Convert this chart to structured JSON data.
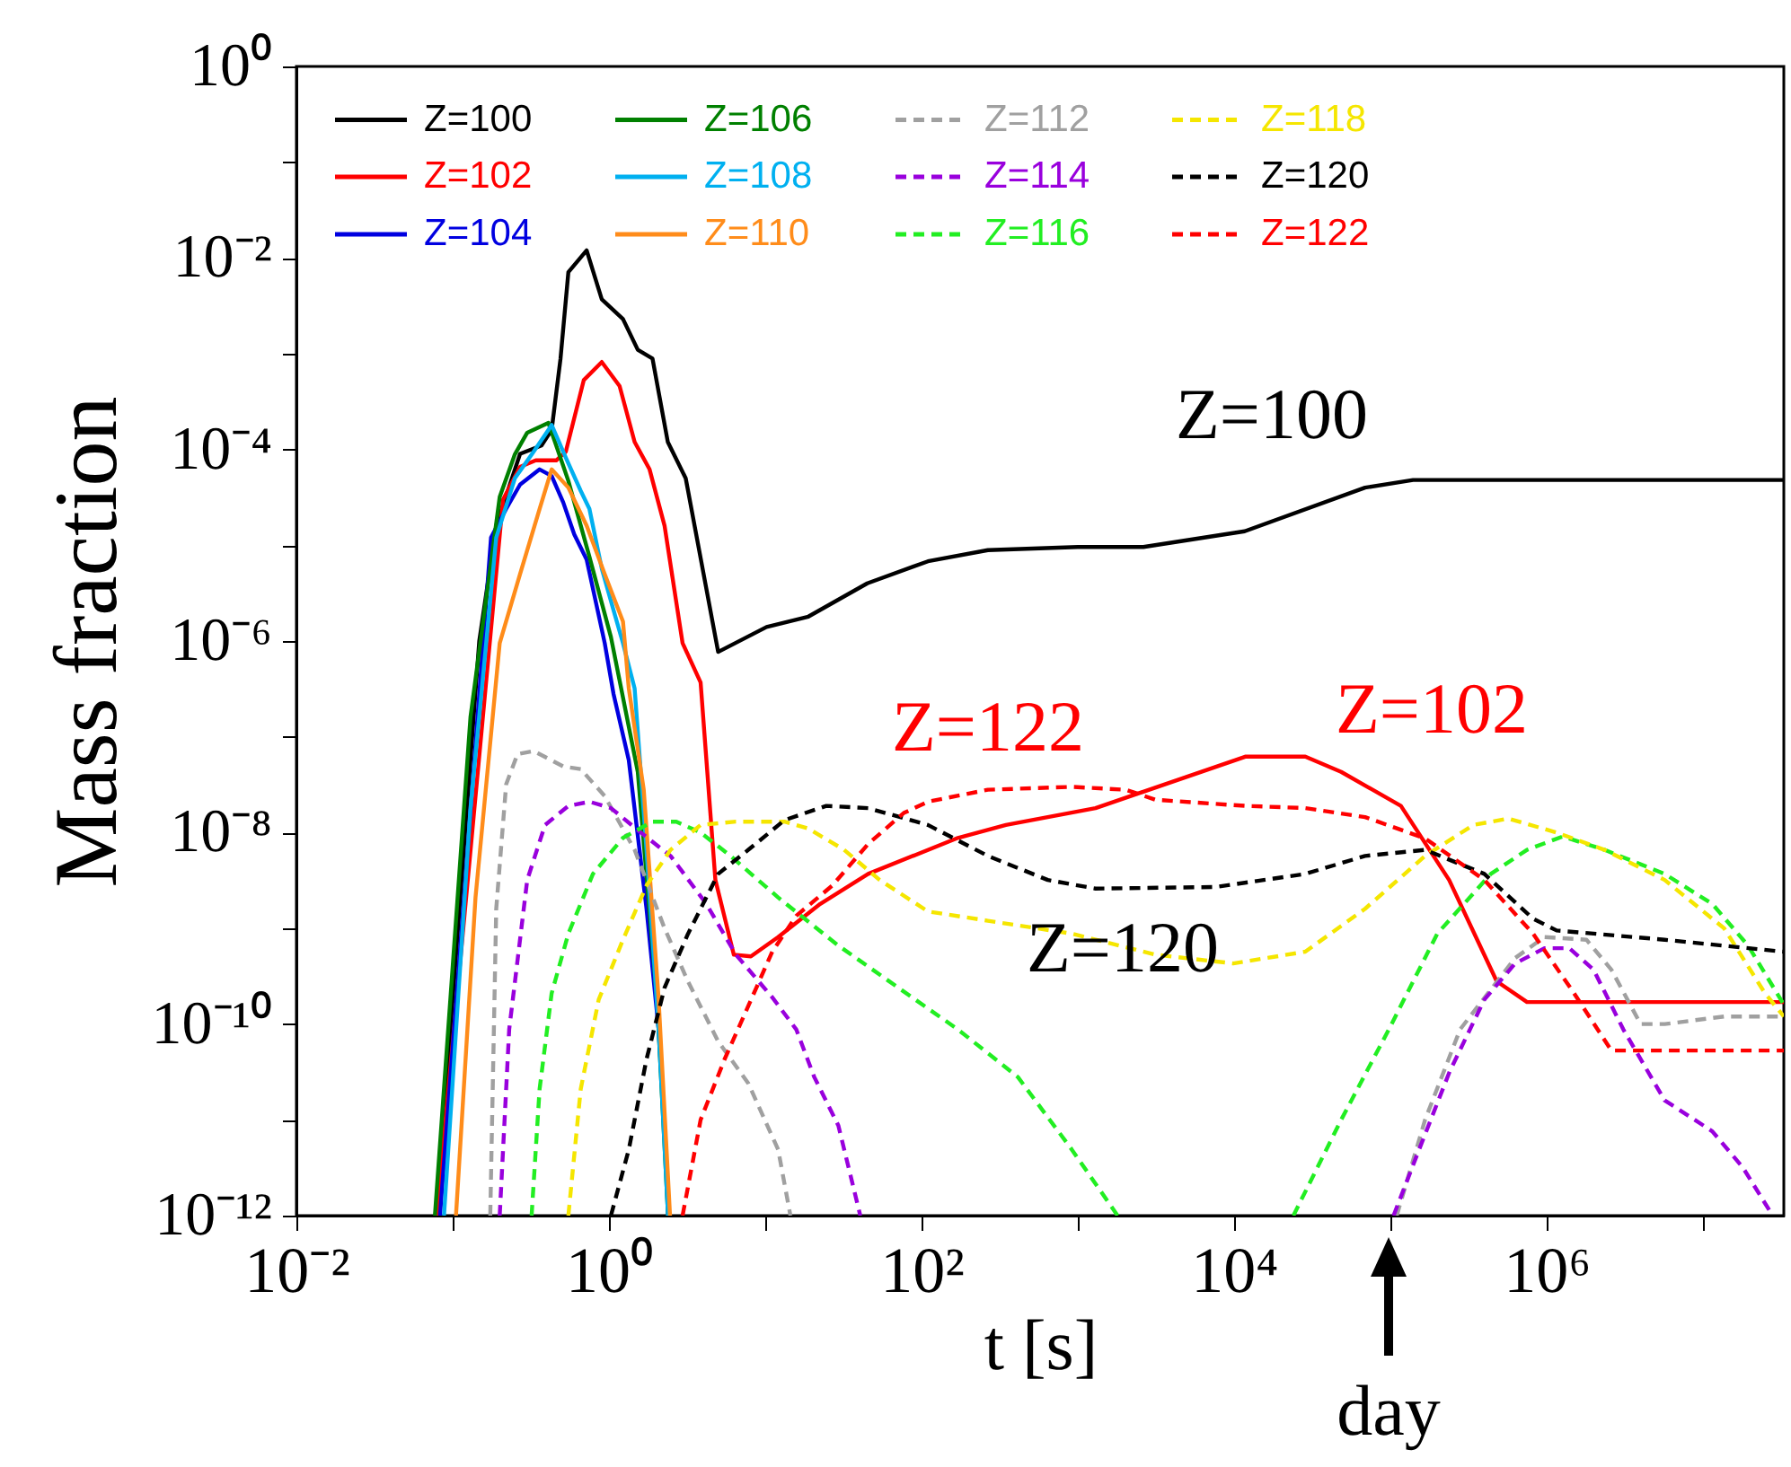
{
  "chart_data": {
    "type": "line",
    "xlabel": "t [s]",
    "ylabel": "Mass fraction",
    "log": "xy",
    "xlim": [
      0.01,
      33000000.0
    ],
    "ylim": [
      1e-12,
      1
    ],
    "xticks": [
      {
        "value": 0.01,
        "label": "10⁻²"
      },
      {
        "value": 0.1,
        "label": null
      },
      {
        "value": 1,
        "label": "10⁰"
      },
      {
        "value": 10,
        "label": null
      },
      {
        "value": 100,
        "label": "10²"
      },
      {
        "value": 1000,
        "label": null
      },
      {
        "value": 10000,
        "label": "10⁴"
      },
      {
        "value": 100000,
        "label": null
      },
      {
        "value": 1000000,
        "label": "10⁶"
      },
      {
        "value": 10000000,
        "label": null
      }
    ],
    "yticks": [
      {
        "value": 1,
        "label": "10⁰"
      },
      {
        "value": 0.1,
        "label": null
      },
      {
        "value": 0.01,
        "label": "10⁻²"
      },
      {
        "value": 0.001,
        "label": null
      },
      {
        "value": 0.0001,
        "label": "10⁻⁴"
      },
      {
        "value": 1e-05,
        "label": null
      },
      {
        "value": 1e-06,
        "label": "10⁻⁶"
      },
      {
        "value": 1e-07,
        "label": null
      },
      {
        "value": 1e-08,
        "label": "10⁻⁸"
      },
      {
        "value": 1e-09,
        "label": null
      },
      {
        "value": 1e-10,
        "label": "10⁻¹⁰"
      },
      {
        "value": 1e-11,
        "label": null
      },
      {
        "value": 1e-12,
        "label": "10⁻¹²"
      }
    ],
    "legend": "top left",
    "series": [
      {
        "name": "Z=100",
        "color": "#000000",
        "line_style": "solid",
        "x": [
          0.079,
          0.148,
          0.19,
          0.27,
          0.37,
          0.43,
          0.49,
          0.55,
          0.72,
          0.9,
          1.23,
          1.53,
          1.9,
          2.38,
          3.1,
          5.0,
          10.2,
          18.9,
          45,
          110,
          266,
          1000,
          2630,
          11700,
          69000,
          140000,
          33000000.0
        ],
        "values": [
          1e-12,
          1e-06,
          1.6e-05,
          9e-05,
          0.00011,
          0.00016,
          0.00089,
          0.0071,
          0.012,
          0.0037,
          0.0023,
          0.0011,
          0.00089,
          0.00012,
          5e-05,
          7.7e-07,
          1.4e-06,
          1.8e-06,
          4e-06,
          6.8e-06,
          8.9e-06,
          9.6e-06,
          9.6e-06,
          1.4e-05,
          4e-05,
          4.8e-05,
          4.8e-05
        ]
      },
      {
        "name": "Z=102",
        "color": "#ff0000",
        "line_style": "solid",
        "x": [
          0.079,
          0.21,
          0.27,
          0.34,
          0.46,
          0.53,
          0.69,
          0.9,
          1.17,
          1.46,
          1.82,
          2.27,
          2.96,
          3.86,
          4.8,
          6.3,
          8.1,
          12.1,
          22.5,
          45.6,
          171,
          347,
          1300,
          11800,
          28600,
          48500,
          117000,
          238000,
          480000,
          750000,
          33000000.0
        ],
        "values": [
          1e-12,
          3e-05,
          6.6e-05,
          7.7e-05,
          7.7e-05,
          9.5e-05,
          0.00053,
          0.00082,
          0.00046,
          0.00012,
          6.2e-05,
          1.6e-05,
          9.5e-07,
          3.7e-07,
          3.2e-09,
          5.3e-10,
          5.1e-10,
          8.1e-10,
          1.8e-09,
          3.7e-09,
          8.8e-09,
          1.2e-08,
          1.8e-08,
          6.2e-08,
          6.2e-08,
          4.3e-08,
          1.9e-08,
          3.2e-09,
          2.8e-10,
          1.7e-10,
          1.7e-10
        ]
      },
      {
        "name": "Z=104",
        "color": "#0000e0",
        "line_style": "solid",
        "x": [
          0.083,
          0.176,
          0.22,
          0.27,
          0.36,
          0.43,
          0.51,
          0.6,
          0.72,
          0.94,
          1.07,
          1.34,
          1.74,
          2.08,
          2.31,
          2.39
        ],
        "values": [
          1e-12,
          1.2e-05,
          2.4e-05,
          4.3e-05,
          6.2e-05,
          5.3e-05,
          2.8e-05,
          1.3e-05,
          7.1e-06,
          9.5e-07,
          2.8e-07,
          5.7e-08,
          1.6e-09,
          8.8e-11,
          4.9e-12,
          1e-12
        ]
      },
      {
        "name": "Z=106",
        "color": "#008000",
        "line_style": "solid",
        "x": [
          0.077,
          0.13,
          0.2,
          0.25,
          0.3,
          0.41,
          0.55,
          0.75,
          1.03,
          1.53,
          2.04,
          2.39
        ],
        "values": [
          1e-12,
          1.6e-07,
          3.2e-05,
          8.9e-05,
          0.00015,
          0.00019,
          4.7e-05,
          7.6e-06,
          1.1e-06,
          4.3e-08,
          1.6e-10,
          1e-12
        ]
      },
      {
        "name": "Z=108",
        "color": "#00b0f0",
        "line_style": "solid",
        "x": [
          0.088,
          0.13,
          0.19,
          0.25,
          0.33,
          0.43,
          0.53,
          0.66,
          0.75,
          0.9,
          1.07,
          1.23,
          1.46,
          1.74,
          2.08,
          2.39
        ],
        "values": [
          1e-12,
          1.8e-08,
          1.2e-05,
          5e-05,
          9.5e-05,
          0.00018,
          8.2e-05,
          3.7e-05,
          2.4e-05,
          5.7e-06,
          2.1e-06,
          9.5e-07,
          3.2e-07,
          6.6e-09,
          8.8e-11,
          1e-12
        ]
      },
      {
        "name": "Z=110",
        "color": "#ff8c1a",
        "line_style": "solid",
        "x": [
          0.105,
          0.14,
          0.2,
          0.27,
          0.36,
          0.43,
          0.55,
          0.72,
          0.94,
          1.23,
          1.34,
          1.67,
          2.08,
          2.46
        ],
        "values": [
          1e-12,
          2.1e-09,
          9.5e-07,
          5e-06,
          2.4e-05,
          6.2e-05,
          4e-05,
          1.6e-05,
          5e-06,
          1.6e-06,
          3.2e-07,
          2.8e-08,
          1.8e-10,
          1e-12
        ]
      },
      {
        "name": "Z=112",
        "color": "#a0a0a0",
        "line_style": "dashed",
        "x": [
          0.174,
          0.19,
          0.22,
          0.26,
          0.33,
          0.51,
          0.66,
          0.94,
          1.46,
          2.27,
          3.2,
          5.0,
          7.8,
          12.1,
          14.5,
          1000,
          110000,
          167000,
          280000,
          630000,
          970000,
          1800000,
          2600000,
          4000000,
          5700000,
          13700000,
          33000000.0
        ],
        "values": [
          1e-12,
          1.6e-09,
          3.2e-08,
          6.6e-08,
          7.1e-08,
          4.9e-08,
          4.6e-08,
          2.4e-08,
          6.6e-09,
          1e-09,
          2.8e-10,
          6.6e-11,
          2.4e-11,
          4.9e-12,
          1e-12,
          null,
          1e-12,
          1e-11,
          8.8e-11,
          4.9e-10,
          8.1e-10,
          7.6e-10,
          3.7e-10,
          1e-10,
          1e-10,
          1.2e-10,
          1.2e-10
        ]
      },
      {
        "name": "Z=114",
        "color": "#9900dd",
        "line_style": "dashed",
        "x": [
          0.2,
          0.23,
          0.3,
          0.39,
          0.55,
          0.75,
          1.03,
          1.6,
          2.48,
          4.2,
          6.5,
          11.1,
          15.8,
          20.6,
          29.4,
          40.6,
          1000,
          105000,
          153000,
          240000,
          400000,
          630000,
          970000,
          1400000,
          2000000,
          3100000,
          5700000,
          11500000,
          18000000,
          28000000
        ],
        "values": [
          1e-12,
          8.8e-11,
          3.2e-09,
          1.2e-08,
          1.9e-08,
          2.1e-08,
          1.8e-08,
          1e-08,
          5.7e-09,
          1.8e-09,
          5.3e-10,
          1.9e-10,
          8.8e-11,
          2.8e-11,
          8.7e-12,
          1e-12,
          null,
          1e-12,
          4.9e-12,
          3.2e-11,
          1.8e-10,
          4.3e-10,
          6.2e-10,
          6.2e-10,
          3.7e-10,
          8.8e-11,
          1.6e-11,
          7.6e-12,
          3.2e-12,
          1e-12
        ]
      },
      {
        "name": "Z=116",
        "color": "#22ee22",
        "line_style": "dashed",
        "x": [
          0.32,
          0.36,
          0.43,
          0.55,
          0.79,
          1.23,
          1.9,
          2.7,
          3.86,
          6,
          12.1,
          29.4,
          71,
          171,
          414,
          916,
          1800,
          10000,
          24000,
          48500,
          98000,
          200000,
          440000,
          750000,
          1270000,
          2350000,
          5700000,
          11500000,
          19500000,
          33000000.0
        ],
        "values": [
          1e-12,
          2.1e-11,
          2.1e-10,
          8.8e-10,
          3.7e-09,
          8.8e-09,
          1.3e-08,
          1.3e-08,
          1e-08,
          5.7e-09,
          2.1e-09,
          6.6e-10,
          2.4e-10,
          8.8e-11,
          2.8e-11,
          4.9e-12,
          1e-12,
          null,
          1e-12,
          1e-11,
          8.8e-11,
          8.8e-10,
          3.7e-09,
          6.6e-09,
          9.1e-09,
          6.6e-09,
          3.7e-09,
          1.8e-09,
          6.6e-10,
          1.6e-10
        ]
      },
      {
        "name": "Z=118",
        "color": "#f5e600",
        "line_style": "dashed",
        "x": [
          0.55,
          0.66,
          0.86,
          1.23,
          1.74,
          2.48,
          3.86,
          6.5,
          13.3,
          18.9,
          32,
          54,
          110,
          266,
          916,
          3150,
          9900,
          28600,
          69000,
          167000,
          340000,
          570000,
          1160000,
          2350000,
          5700000,
          13700000,
          25000000,
          33000000.0
        ],
        "values": [
          1e-12,
          2.1e-11,
          1.8e-10,
          7.6e-10,
          2.8e-09,
          6.6e-09,
          1.2e-08,
          1.3e-08,
          1.3e-08,
          1.1e-08,
          6.6e-09,
          3.2e-09,
          1.5e-09,
          1.2e-09,
          8.8e-10,
          5.3e-10,
          4.3e-10,
          5.7e-10,
          1.6e-09,
          5.7e-09,
          1.2e-08,
          1.4e-08,
          1e-08,
          6.6e-09,
          3.2e-09,
          1e-09,
          2.1e-10,
          1.2e-10
        ]
      },
      {
        "name": "Z=120",
        "color": "#000000",
        "line_style": "dashed",
        "x": [
          1.03,
          1.34,
          1.74,
          2.27,
          3.2,
          5.0,
          7.8,
          13.3,
          24.6,
          45.6,
          110,
          266,
          643,
          1300,
          7600,
          28600,
          69000,
          167000,
          400000,
          820000,
          1160000,
          5700000,
          33000000.0
        ],
        "values": [
          1e-12,
          4.9e-12,
          4.3e-11,
          2.4e-10,
          8.7e-10,
          3.7e-09,
          6.6e-09,
          1.35e-08,
          1.9e-08,
          1.8e-08,
          1.2e-08,
          5.7e-09,
          3.2e-09,
          2.6e-09,
          2.7e-09,
          3.7e-09,
          5.7e-09,
          6.6e-09,
          3.7e-09,
          1.26e-09,
          9.5e-10,
          7.6e-10,
          5.7e-10
        ]
      },
      {
        "name": "Z=122",
        "color": "#ff0000",
        "line_style": "dashed",
        "x": [
          2.96,
          3.86,
          5.5,
          7.8,
          11.1,
          15.8,
          26.9,
          45.6,
          77,
          110,
          266,
          916,
          2030,
          3150,
          11800,
          28600,
          69000,
          167000,
          400000,
          820000,
          1500000,
          2600000,
          33000000.0
        ],
        "values": [
          1e-12,
          1e-11,
          4.3e-11,
          1.55e-10,
          5.7e-10,
          1.35e-09,
          2.8e-09,
          7.6e-09,
          1.6e-08,
          2.1e-08,
          2.8e-08,
          3e-08,
          2.8e-08,
          2.2e-08,
          1.9e-08,
          1.8e-08,
          1.45e-08,
          8.7e-09,
          3.2e-09,
          8.8e-10,
          2.1e-10,
          5.3e-11,
          5.3e-11
        ]
      }
    ],
    "annotations": [
      "Z=100",
      "Z=122",
      "Z=102",
      "Z=120",
      "day"
    ]
  }
}
